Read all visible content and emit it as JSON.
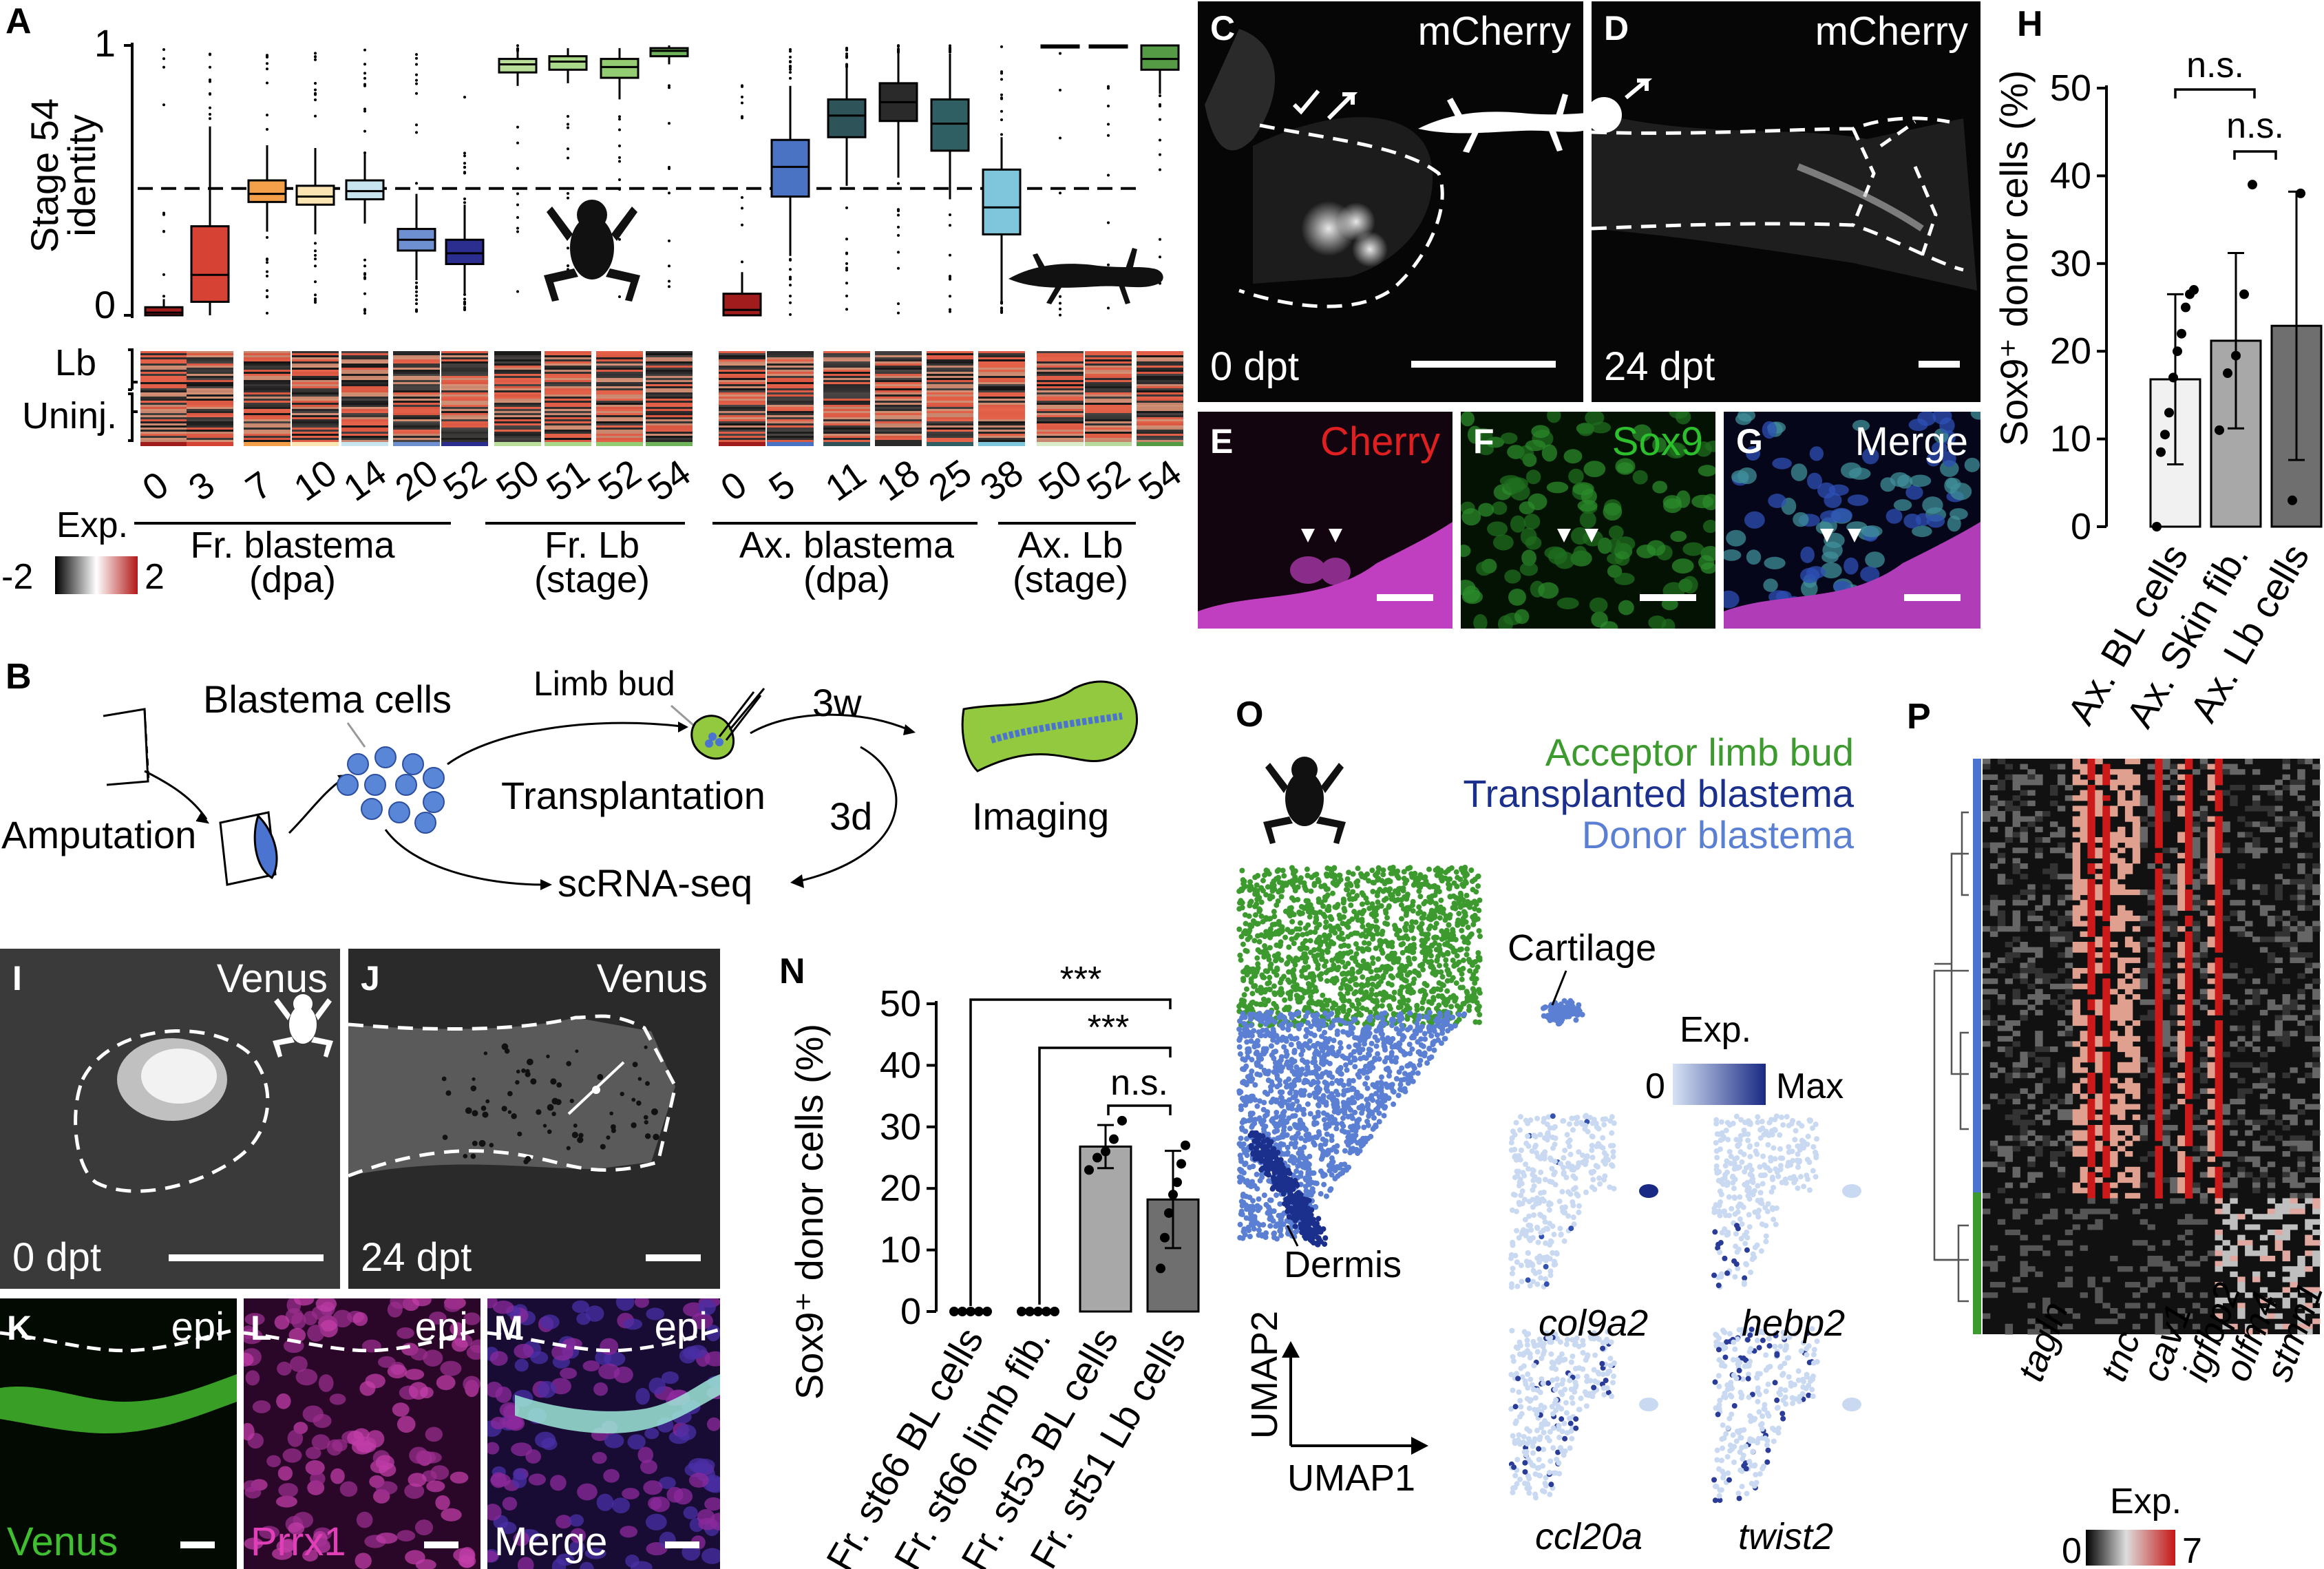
{
  "panels": {
    "A": {
      "label": "A",
      "ylabel_line1": "Stage 54",
      "ylabel_line2": "identity",
      "ytick_top": "1",
      "ytick_bottom": "0",
      "heat_row_labels": [
        "Lb",
        "Uninj."
      ],
      "exp_label": "Exp.",
      "exp_min": "-2",
      "exp_max": "2",
      "groups": [
        {
          "line1": "Fr. blastema",
          "line2": "(dpa)"
        },
        {
          "line1": "Fr. Lb",
          "line2": "(stage)"
        },
        {
          "line1": "Ax. blastema",
          "line2": "(dpa)"
        },
        {
          "line1": "Ax. Lb",
          "line2": "(stage)"
        }
      ]
    },
    "B": {
      "label": "B",
      "amputation": "Amputation",
      "blastema_cells": "Blastema cells",
      "limb_bud": "Limb bud",
      "transplantation": "Transplantation",
      "three_w": "3w",
      "three_d": "3d",
      "imaging": "Imaging",
      "scrnaseq": "scRNA-seq"
    },
    "C": {
      "label": "C",
      "title": "mCherry",
      "time": "0 dpt"
    },
    "D": {
      "label": "D",
      "title": "mCherry",
      "time": "24 dpt"
    },
    "E": {
      "label": "E",
      "title": "Cherry"
    },
    "F": {
      "label": "F",
      "title": "Sox9"
    },
    "G": {
      "label": "G",
      "title": "Merge"
    },
    "H": {
      "label": "H",
      "ylabel": "Sox9⁺ donor cells (%)",
      "ns1": "n.s.",
      "ns2": "n.s."
    },
    "I": {
      "label": "I",
      "title": "Venus",
      "time": "0 dpt"
    },
    "J": {
      "label": "J",
      "title": "Venus",
      "time": "24 dpt"
    },
    "K": {
      "label": "K",
      "epi": "epi",
      "title": "Venus"
    },
    "L": {
      "label": "L",
      "epi": "epi",
      "title": "Prrx1"
    },
    "M": {
      "label": "M",
      "epi": "epi",
      "title": "Merge"
    },
    "N": {
      "label": "N",
      "ylabel": "Sox9⁺ donor cells (%)",
      "sig1": "***",
      "sig2": "***",
      "ns": "n.s."
    },
    "O": {
      "label": "O",
      "legend": [
        "Acceptor limb bud",
        "Transplanted blastema",
        "Donor blastema"
      ],
      "cartilage": "Cartilage",
      "dermis": "Dermis",
      "exp_label": "Exp.",
      "exp_min": "0",
      "exp_max": "Max",
      "genes": [
        "col9a2",
        "hebp2",
        "ccl20a",
        "twist2"
      ],
      "umap1": "UMAP1",
      "umap2": "UMAP2"
    },
    "P": {
      "label": "P",
      "genes": [
        "tagln",
        "tnc",
        "cav1",
        "igfbp2",
        "olfm4",
        "stmn1"
      ],
      "exp_label": "Exp.",
      "exp_min": "0",
      "exp_max": "7"
    }
  },
  "colors": {
    "frog_blastema": [
      "#a11d1d",
      "#d64234",
      "#f4a04a",
      "#fae5b2",
      "#c8e4ef",
      "#6e8fd0",
      "#2b2e8e"
    ],
    "frog_lb": [
      "#b9df9a",
      "#a9d88b",
      "#94cc73",
      "#6fb35a"
    ],
    "axolotl_blastema": [
      "#a11d1d",
      "#4b73c4",
      "#2e5358",
      "#2a2a2a",
      "#2f5f63",
      "#7fc5dc"
    ],
    "axolotl_lb": [
      "#d8ecc9",
      "#b7db9f",
      "#559b46"
    ],
    "acceptor": "#3d9a2e",
    "transplanted": "#1b2f8c",
    "donor": "#5b7fd3"
  },
  "chart_data": [
    {
      "panel": "A",
      "type": "box",
      "ylim": [
        0,
        1
      ],
      "reference_line": 0.47,
      "series": [
        {
          "name": "Fr. blastema (dpa)",
          "categories": [
            "0",
            "3",
            "7",
            "10",
            "14",
            "20",
            "52"
          ],
          "q1": [
            0.0,
            0.05,
            0.42,
            0.41,
            0.43,
            0.24,
            0.19
          ],
          "median": [
            0.01,
            0.15,
            0.45,
            0.44,
            0.46,
            0.28,
            0.23
          ],
          "q3": [
            0.03,
            0.33,
            0.5,
            0.48,
            0.5,
            0.32,
            0.28
          ],
          "lower": [
            0.0,
            0.0,
            0.31,
            0.3,
            0.34,
            0.13,
            0.08
          ],
          "upper": [
            0.06,
            0.7,
            0.63,
            0.62,
            0.6,
            0.45,
            0.41
          ]
        },
        {
          "name": "Fr. Lb (stage)",
          "categories": [
            "50",
            "51",
            "52",
            "54"
          ],
          "q1": [
            0.9,
            0.91,
            0.88,
            0.96
          ],
          "median": [
            0.93,
            0.94,
            0.92,
            0.98
          ],
          "q3": [
            0.95,
            0.96,
            0.95,
            0.99
          ],
          "lower": [
            0.85,
            0.86,
            0.8,
            0.93
          ],
          "upper": [
            0.98,
            0.99,
            0.99,
            1.0
          ]
        },
        {
          "name": "Ax. blastema (dpa)",
          "categories": [
            "0",
            "5",
            "11",
            "18",
            "25",
            "38"
          ],
          "q1": [
            0.0,
            0.44,
            0.66,
            0.72,
            0.61,
            0.3
          ],
          "median": [
            0.02,
            0.55,
            0.74,
            0.79,
            0.71,
            0.4
          ],
          "q3": [
            0.08,
            0.65,
            0.8,
            0.86,
            0.8,
            0.54
          ],
          "lower": [
            0.0,
            0.22,
            0.48,
            0.51,
            0.43,
            0.05
          ],
          "upper": [
            0.16,
            0.85,
            0.92,
            0.97,
            0.97,
            0.66
          ]
        },
        {
          "name": "Ax. Lb (stage)",
          "categories": [
            "50",
            "52",
            "54"
          ],
          "q1": [
            1.0,
            1.0,
            0.91
          ],
          "median": [
            1.0,
            1.0,
            0.95
          ],
          "q3": [
            1.0,
            1.0,
            1.0
          ],
          "lower": [
            1.0,
            1.0,
            0.82
          ],
          "upper": [
            1.0,
            1.0,
            1.0
          ]
        }
      ]
    },
    {
      "panel": "H",
      "type": "bar",
      "categories": [
        "Ax. BL cells",
        "Ax. Skin fib.",
        "Ax. Lb cells"
      ],
      "values": [
        16.8,
        21.2,
        22.9
      ],
      "sd": [
        9.7,
        10.0,
        15.3
      ],
      "points": [
        [
          0,
          8.5,
          10.5,
          13,
          17,
          20,
          22,
          25,
          26.5,
          27
        ],
        [
          11,
          17.5,
          19.5,
          26.5,
          39
        ],
        [
          3,
          38
        ]
      ],
      "ylim": [
        0,
        50
      ],
      "yticks": [
        0,
        10,
        20,
        30,
        40,
        50
      ],
      "ylabel": "Sox9⁺ donor cells (%)",
      "bar_colors": [
        "#f1f1f1",
        "#a8a8a8",
        "#6f6f6f"
      ]
    },
    {
      "panel": "N",
      "type": "bar",
      "categories": [
        "Fr. st66 BL cells",
        "Fr. st66 limb fib.",
        "Fr. st53 BL cells",
        "Fr. st51 Lb cells"
      ],
      "values": [
        0,
        0,
        26.8,
        18.2
      ],
      "sd": [
        0,
        0,
        3.5,
        7.9
      ],
      "points": [
        [
          0,
          0,
          0,
          0,
          0
        ],
        [
          0,
          0,
          0,
          0,
          0
        ],
        [
          23,
          25,
          26,
          28,
          31
        ],
        [
          7,
          12,
          16,
          19,
          21,
          24,
          27
        ]
      ],
      "ylim": [
        0,
        50
      ],
      "yticks": [
        0,
        10,
        20,
        30,
        40,
        50
      ],
      "ylabel": "Sox9⁺ donor cells (%)",
      "bar_colors": [
        "#f1f1f1",
        "#f1f1f1",
        "#a8a8a8",
        "#6f6f6f"
      ]
    }
  ]
}
